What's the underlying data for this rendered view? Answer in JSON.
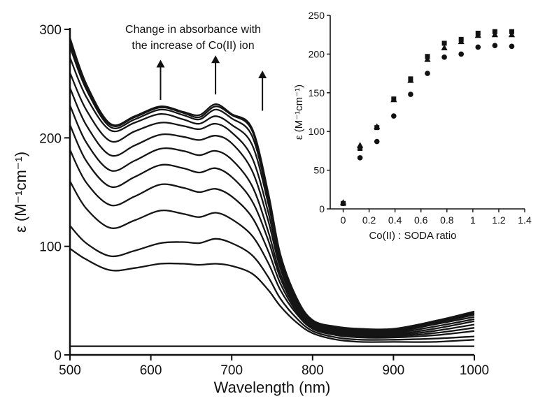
{
  "chart_data": [
    {
      "type": "line",
      "xlabel": "Wavelength (nm)",
      "ylabel": "ε (M⁻¹cm⁻¹)",
      "xlim": [
        500,
        1000
      ],
      "ylim": [
        0,
        300
      ],
      "x_ticks": [
        500,
        600,
        700,
        800,
        900,
        1000
      ],
      "y_ticks": [
        0,
        100,
        200,
        300
      ],
      "grid": false,
      "annotation": {
        "lines": [
          "Change in absorbance with",
          "the increase of Co(II) ion"
        ]
      },
      "arrows": [
        {
          "x": 612,
          "y_from": 235,
          "y_to": 272
        },
        {
          "x": 680,
          "y_from": 240,
          "y_to": 276
        },
        {
          "x": 738,
          "y_from": 225,
          "y_to": 262
        }
      ],
      "x": [
        500,
        520,
        550,
        580,
        612,
        640,
        660,
        680,
        700,
        725,
        745,
        760,
        780,
        800,
        830,
        860,
        900,
        950,
        1000
      ],
      "series": [
        {
          "values": [
            8,
            8,
            8,
            8,
            8,
            8,
            8,
            8,
            8,
            8,
            8,
            8,
            8,
            8,
            8,
            8,
            8,
            8,
            8
          ]
        },
        {
          "values": [
            98,
            88,
            78,
            80,
            84,
            84,
            83,
            84,
            82,
            75,
            60,
            45,
            30,
            20,
            14,
            12,
            12,
            12,
            14
          ]
        },
        {
          "values": [
            119,
            103,
            91,
            96,
            103,
            104,
            103,
            107,
            103,
            92,
            72,
            52,
            34,
            22,
            16,
            14,
            14,
            15,
            17
          ]
        },
        {
          "values": [
            160,
            135,
            117,
            124,
            133,
            130,
            127,
            131,
            125,
            110,
            85,
            60,
            38,
            24,
            18,
            16,
            16,
            18,
            22
          ]
        },
        {
          "values": [
            189,
            159,
            138,
            146,
            157,
            154,
            150,
            153,
            146,
            127,
            96,
            66,
            40,
            25,
            19,
            17,
            17,
            20,
            25
          ]
        },
        {
          "values": [
            212,
            179,
            155,
            164,
            175,
            172,
            168,
            172,
            164,
            142,
            106,
            71,
            42,
            26,
            20,
            18,
            18,
            22,
            28
          ]
        },
        {
          "values": [
            230,
            196,
            170,
            179,
            190,
            188,
            184,
            188,
            180,
            156,
            114,
            75,
            44,
            27,
            21,
            19,
            19,
            24,
            31
          ]
        },
        {
          "values": [
            246,
            212,
            184,
            193,
            203,
            201,
            198,
            202,
            195,
            170,
            124,
            80,
            46,
            28,
            22,
            20,
            20,
            26,
            33
          ]
        },
        {
          "values": [
            260,
            226,
            197,
            206,
            214,
            211,
            208,
            213,
            205,
            182,
            132,
            84,
            48,
            29,
            23,
            21,
            21,
            28,
            35
          ]
        },
        {
          "values": [
            274,
            238,
            207,
            214,
            222,
            217,
            213,
            220,
            212,
            194,
            140,
            88,
            50,
            30,
            24,
            22,
            22,
            29,
            37
          ]
        },
        {
          "values": [
            284,
            245,
            210,
            217,
            226,
            221,
            217,
            226,
            218,
            202,
            145,
            90,
            51,
            31,
            25,
            23,
            23,
            30,
            38
          ]
        },
        {
          "values": [
            288,
            248,
            212,
            219,
            228,
            223,
            219,
            229,
            221,
            207,
            148,
            92,
            52,
            32,
            25,
            23,
            23,
            31,
            39
          ]
        },
        {
          "values": [
            292,
            250,
            213,
            220,
            229,
            224,
            221,
            231,
            222,
            209,
            150,
            93,
            53,
            32,
            26,
            24,
            24,
            31,
            40
          ]
        }
      ]
    },
    {
      "type": "scatter",
      "xlabel": "Co(II) : SODA ratio",
      "ylabel": "ε (M⁻¹cm⁻¹)",
      "xlim": [
        -0.1,
        1.4
      ],
      "ylim": [
        0,
        250
      ],
      "x_ticks": [
        0,
        0.2,
        0.4,
        0.6,
        0.8,
        1,
        1.2,
        1.4
      ],
      "y_ticks": [
        0,
        50,
        100,
        150,
        200,
        250
      ],
      "x_tick_labels": [
        "0",
        "0.2",
        "0.4",
        "0.6",
        "0.8",
        "1",
        "1.2",
        "1.4"
      ],
      "grid": false,
      "series": [
        {
          "marker": "circle",
          "x": [
            0,
            0.13,
            0.26,
            0.39,
            0.52,
            0.65,
            0.78,
            0.91,
            1.04,
            1.17,
            1.3
          ],
          "values": [
            7,
            66,
            87,
            120,
            148,
            175,
            196,
            200,
            209,
            211,
            210
          ]
        },
        {
          "marker": "triangle",
          "x": [
            0,
            0.13,
            0.26,
            0.39,
            0.52,
            0.65,
            0.78,
            0.91,
            1.04,
            1.17,
            1.3
          ],
          "values": [
            8,
            82,
            106,
            141,
            166,
            193,
            208,
            216,
            224,
            225,
            225
          ]
        },
        {
          "marker": "square",
          "x": [
            0,
            0.13,
            0.26,
            0.39,
            0.52,
            0.65,
            0.78,
            0.91,
            1.04,
            1.17,
            1.3
          ],
          "values": [
            7,
            78,
            105,
            142,
            168,
            197,
            214,
            219,
            227,
            229,
            229
          ]
        }
      ]
    }
  ]
}
